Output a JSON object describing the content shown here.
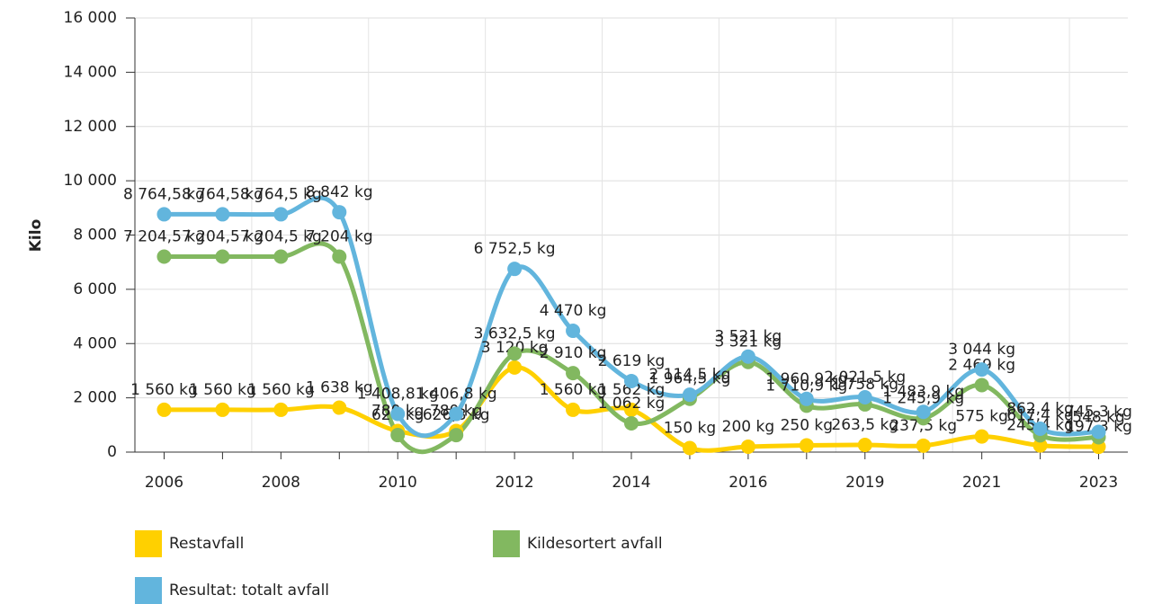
{
  "chart_data": {
    "type": "line",
    "y_label": "Kilo",
    "categories": [
      "2006",
      null,
      "2008",
      null,
      "2010",
      null,
      "2012",
      null,
      "2014",
      null,
      "2016",
      null,
      "2019",
      null,
      "2021",
      null,
      "2023"
    ],
    "ylim": [
      0,
      16000
    ],
    "yticks": [
      0,
      {
        "value": 2000,
        "label": "2 000"
      },
      {
        "value": 4000,
        "label": "4 000"
      },
      {
        "value": 6000,
        "label": "6 000"
      },
      {
        "value": 8000,
        "label": "8 000"
      },
      {
        "value": 10000,
        "label": "10 000"
      },
      {
        "value": 12000,
        "label": "12 000"
      },
      {
        "value": 14000,
        "label": "14 000"
      },
      {
        "value": 16000,
        "label": "16 000"
      }
    ],
    "grid": true,
    "series": [
      {
        "name": "Restavfall",
        "color": "#ffd000",
        "values": [
          1560,
          1560,
          1560,
          1638,
          780,
          780,
          3120,
          1560,
          1562,
          150,
          200,
          250,
          263.5,
          237.5,
          575,
          245.4,
          197.3
        ],
        "value_labels": [
          "1 560 kg",
          "1 560 kg",
          "1 560 kg",
          "1 638 kg",
          "780 kg",
          "780 kg",
          "3 120 kg",
          "1 560 kg",
          "1 562 kg",
          "150 kg",
          "200 kg",
          "250 kg",
          "263,5 kg",
          "237,5 kg",
          "575 kg",
          "245,4 kg",
          "197,3 kg"
        ]
      },
      {
        "name": "Kildesortert avfall",
        "color": "#82b860",
        "values": [
          7204.5,
          7204.5,
          7204.5,
          7204,
          628,
          626.8,
          3632.5,
          2910,
          1062,
          1964.5,
          3321,
          1710.9,
          1758,
          1245.9,
          2469,
          617.4,
          548
        ],
        "value_labels": [
          "7 204,5 kg",
          "7 204,5 kg",
          "7 204,5 kg",
          "7 204 kg",
          "628 kg",
          "626,8 kg",
          "3 632,5 kg",
          "2 910 kg",
          "1 062 kg",
          "1 964,5 kg",
          "3 321 kg",
          "1 710,9 kg",
          "1 758 kg",
          "1 245,9 kg",
          "2 469 kg",
          "617,4 kg",
          "548 kg"
        ]
      },
      {
        "name": "Resultat: totalt avfall",
        "color": "#62b5dd",
        "values": [
          8764.5,
          8764.5,
          8764.5,
          8842,
          1408.8,
          1406.8,
          6752.5,
          4470,
          2619,
          2114.5,
          3521,
          1960.9,
          2021.5,
          1483.9,
          3044,
          862.4,
          745.3
        ],
        "value_labels": [
          "8 764,5 kg",
          "8 764,5 kg",
          "8 764,5 kg",
          "8 842 kg",
          "1 408,8 kg",
          "1 406,8 kg",
          "6 752,5 kg",
          "4 470 kg",
          "2 619 kg",
          "2 114,5 kg",
          "3 521 kg",
          "1 960,9 kg",
          "2 021,5 kg",
          "1 483,9 kg",
          "3 044 kg",
          "862,4 kg",
          "745,3 kg"
        ]
      }
    ]
  }
}
